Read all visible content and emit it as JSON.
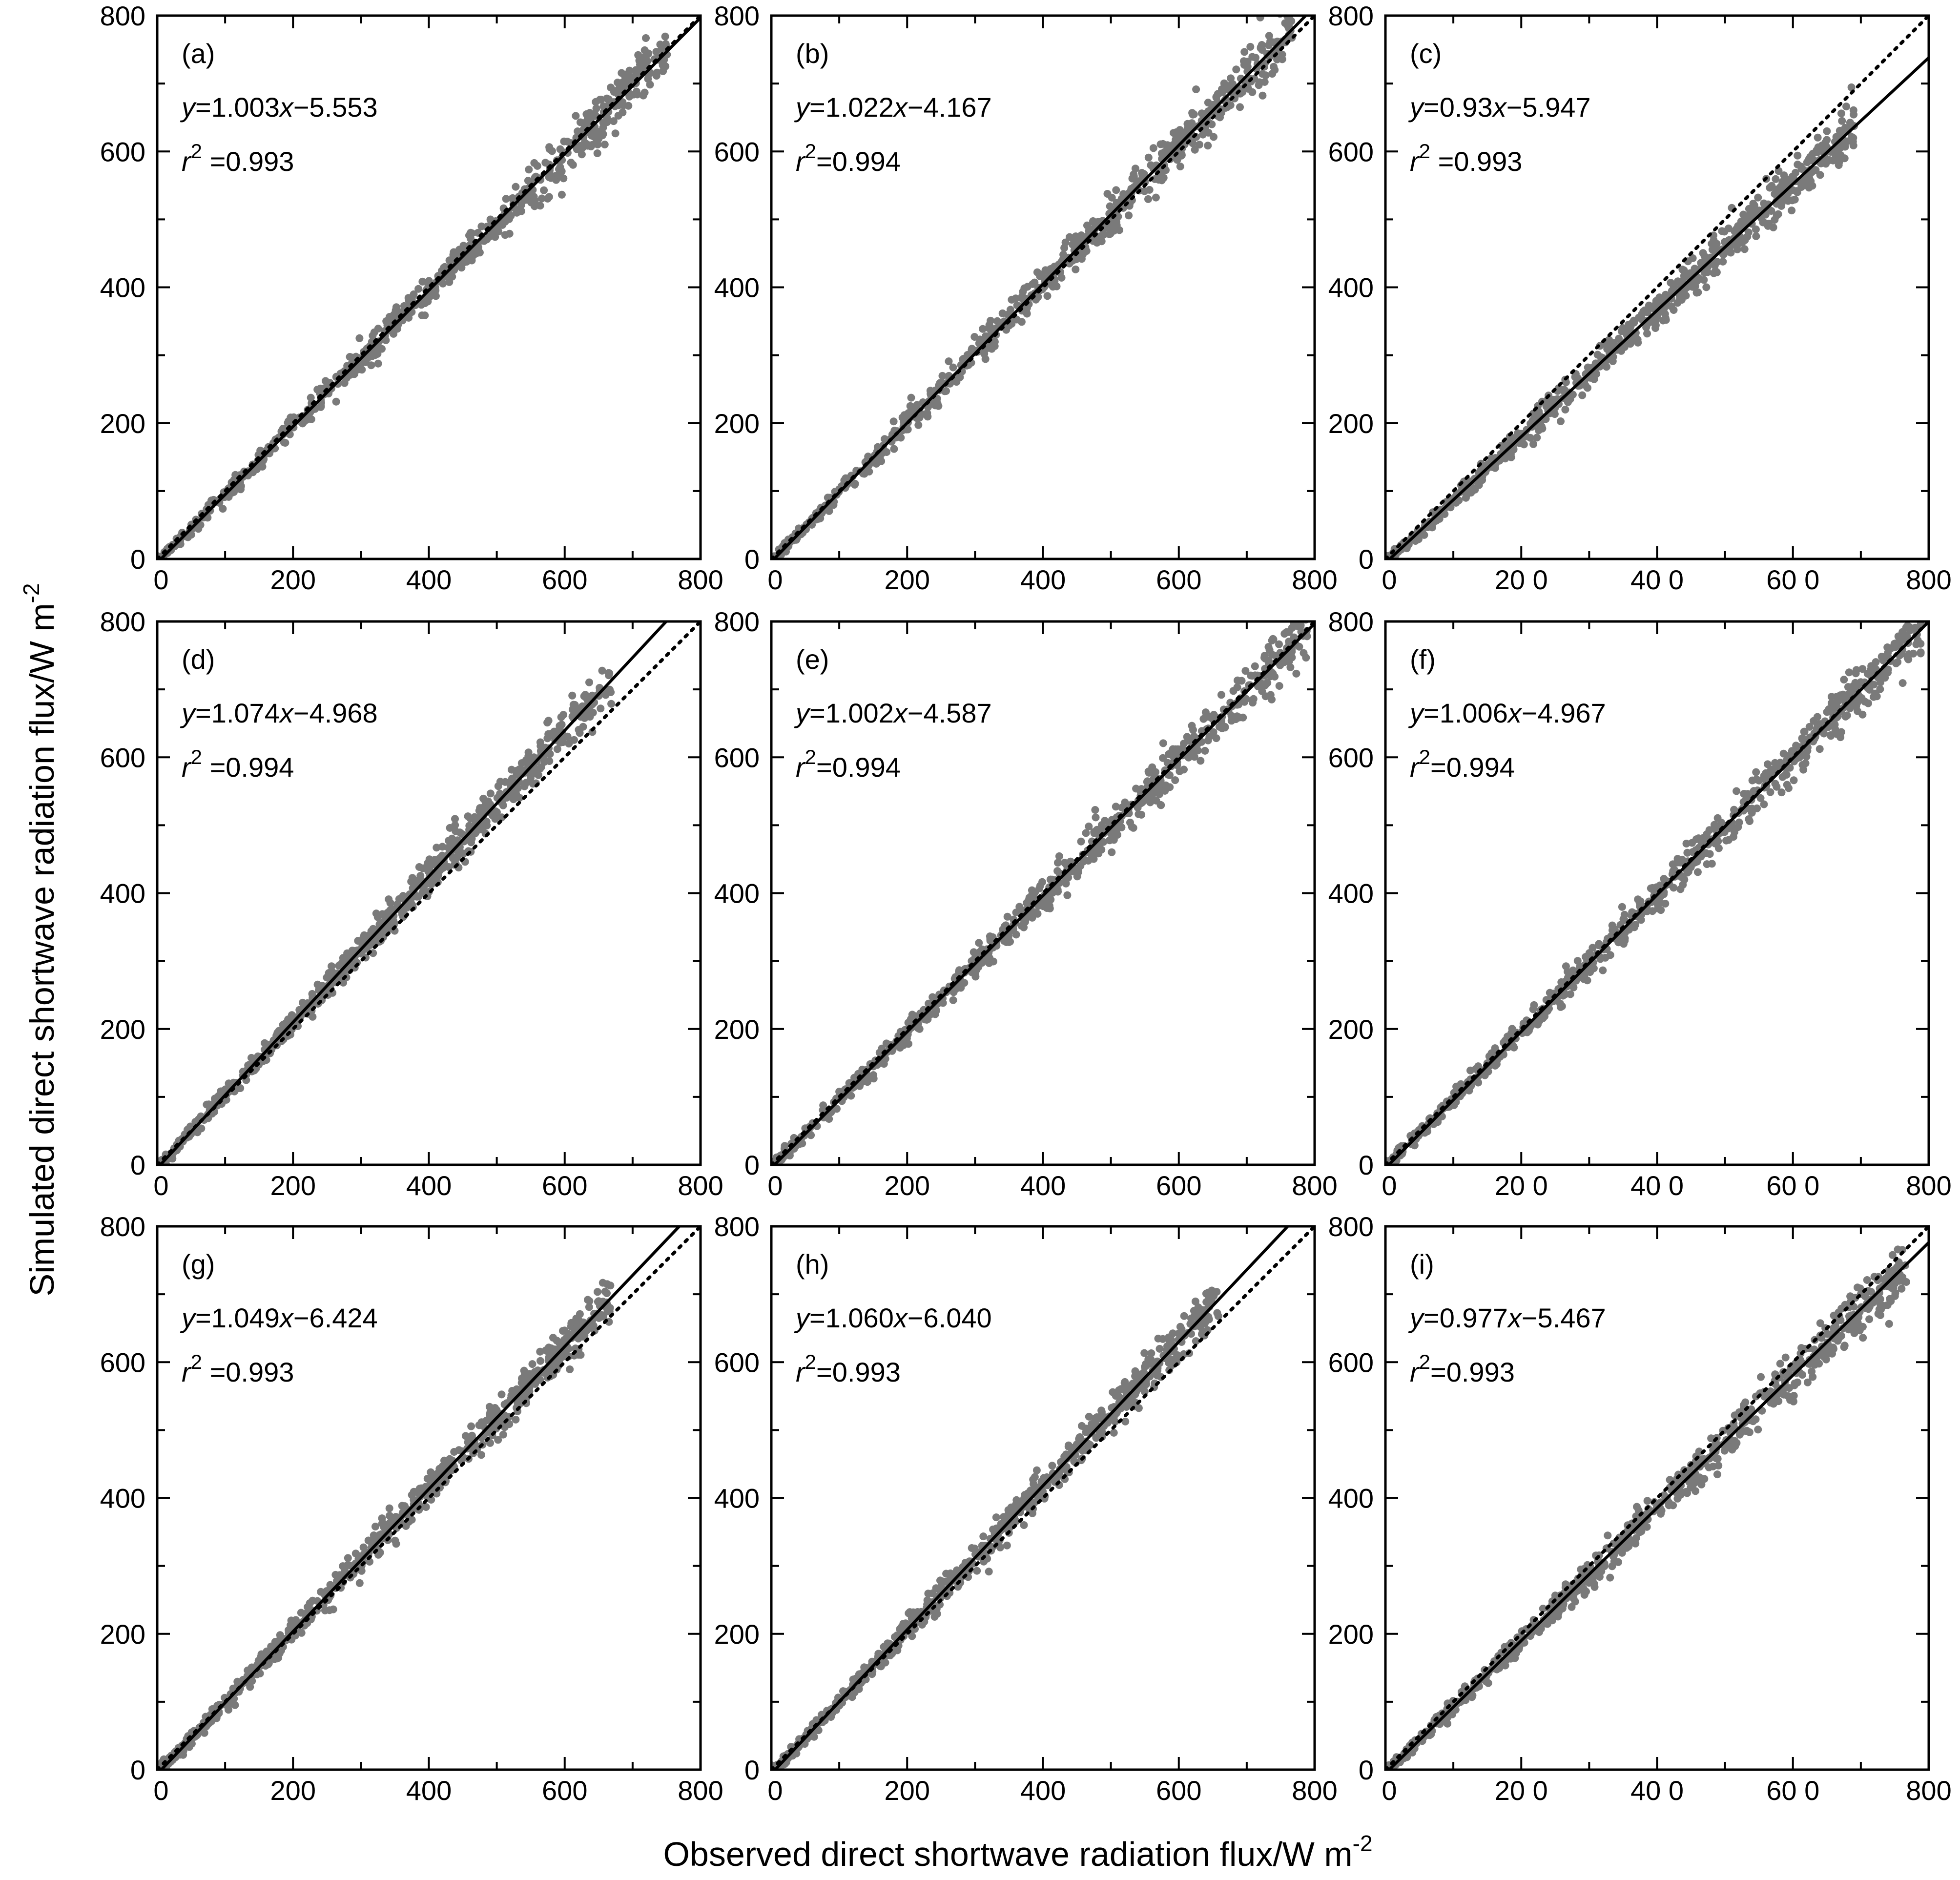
{
  "figure": {
    "xlabel": "Observed direct shortwave radiation flux/W m",
    "xlabel_sup": "-2",
    "ylabel": "Simulated direct shortwave radiation flux/W m",
    "ylabel_sup": "-2",
    "colors": {
      "points": "#7a7a7a",
      "lines": "#000000",
      "background": "#ffffff"
    }
  },
  "chart_data": [
    {
      "panel": "(a)",
      "type": "scatter",
      "xlim": [
        0,
        800
      ],
      "ylim": [
        0,
        800
      ],
      "xticks": [
        "0",
        "200",
        "400",
        "600",
        "800"
      ],
      "yticks": [
        "0",
        "200",
        "400",
        "600",
        "800"
      ],
      "fit": {
        "slope": 1.003,
        "intercept": -5.553,
        "eq_y": "y",
        "eq_coef": "=1.003",
        "eq_x": "x",
        "eq_const": "−5.553",
        "r2_label": "r",
        "r2_sup": "2",
        "r2_value": " =0.993"
      },
      "reference_line": "1:1",
      "n_points_approx": 700,
      "x_range_points": [
        0,
        755
      ]
    },
    {
      "panel": "(b)",
      "type": "scatter",
      "xlim": [
        0,
        800
      ],
      "ylim": [
        0,
        800
      ],
      "xticks": [
        "0",
        "200",
        "400",
        "600",
        "800"
      ],
      "yticks": [
        "0",
        "200",
        "400",
        "600",
        "800"
      ],
      "fit": {
        "slope": 1.022,
        "intercept": -4.167,
        "eq_y": "y",
        "eq_coef": "=1.022",
        "eq_x": "x",
        "eq_const": "−4.167",
        "r2_label": "r",
        "r2_sup": "2",
        "r2_value": "=0.994"
      },
      "reference_line": "1:1",
      "n_points_approx": 700,
      "x_range_points": [
        0,
        770
      ]
    },
    {
      "panel": "(c)",
      "type": "scatter",
      "xlim": [
        0,
        800
      ],
      "ylim": [
        0,
        800
      ],
      "xticks": [
        "0",
        "20 0",
        "40 0",
        "60 0",
        "800"
      ],
      "yticks": [
        "0",
        "200",
        "400",
        "600",
        "800"
      ],
      "fit": {
        "slope": 0.93,
        "intercept": -5.947,
        "eq_y": "y",
        "eq_coef": "=0.93",
        "eq_x": "x",
        "eq_const": "−5.947",
        "r2_label": "r",
        "r2_sup": "2",
        "r2_value": " =0.993"
      },
      "reference_line": "1:1",
      "n_points_approx": 700,
      "x_range_points": [
        0,
        690
      ]
    },
    {
      "panel": "(d)",
      "type": "scatter",
      "xlim": [
        0,
        800
      ],
      "ylim": [
        0,
        800
      ],
      "xticks": [
        "0",
        "200",
        "400",
        "600",
        "800"
      ],
      "yticks": [
        "0",
        "200",
        "400",
        "600",
        "800"
      ],
      "fit": {
        "slope": 1.074,
        "intercept": -4.968,
        "eq_y": "y",
        "eq_coef": "=1.074",
        "eq_x": "x",
        "eq_const": "−4.968",
        "r2_label": "r",
        "r2_sup": "2",
        "r2_value": " =0.994"
      },
      "reference_line": "1:1",
      "n_points_approx": 700,
      "x_range_points": [
        0,
        670
      ]
    },
    {
      "panel": "(e)",
      "type": "scatter",
      "xlim": [
        0,
        800
      ],
      "ylim": [
        0,
        800
      ],
      "xticks": [
        "0",
        "200",
        "400",
        "600",
        "800"
      ],
      "yticks": [
        "0",
        "200",
        "400",
        "600",
        "800"
      ],
      "fit": {
        "slope": 1.002,
        "intercept": -4.587,
        "eq_y": "y",
        "eq_coef": "=1.002",
        "eq_x": "x",
        "eq_const": "−4.587",
        "r2_label": "r",
        "r2_sup": "2",
        "r2_value": "=0.994"
      },
      "reference_line": "1:1",
      "n_points_approx": 700,
      "x_range_points": [
        0,
        790
      ]
    },
    {
      "panel": "(f)",
      "type": "scatter",
      "xlim": [
        0,
        800
      ],
      "ylim": [
        0,
        800
      ],
      "xticks": [
        "0",
        "20 0",
        "40 0",
        "60 0",
        "800"
      ],
      "yticks": [
        "0",
        "200",
        "400",
        "600",
        "800"
      ],
      "fit": {
        "slope": 1.006,
        "intercept": -4.967,
        "eq_y": "y",
        "eq_coef": "=1.006",
        "eq_x": "x",
        "eq_const": "−4.967",
        "r2_label": "r",
        "r2_sup": "2",
        "r2_value": "=0.994"
      },
      "reference_line": "1:1",
      "n_points_approx": 700,
      "x_range_points": [
        0,
        790
      ]
    },
    {
      "panel": "(g)",
      "type": "scatter",
      "xlim": [
        0,
        800
      ],
      "ylim": [
        0,
        800
      ],
      "xticks": [
        "0",
        "200",
        "400",
        "600",
        "800"
      ],
      "yticks": [
        "0",
        "200",
        "400",
        "600",
        "800"
      ],
      "fit": {
        "slope": 1.049,
        "intercept": -6.424,
        "eq_y": "y",
        "eq_coef": "=1.049",
        "eq_x": "x",
        "eq_const": "−6.424",
        "r2_label": "r",
        "r2_sup": "2",
        "r2_value": " =0.993"
      },
      "reference_line": "1:1",
      "n_points_approx": 700,
      "x_range_points": [
        0,
        670
      ]
    },
    {
      "panel": "(h)",
      "type": "scatter",
      "xlim": [
        0,
        800
      ],
      "ylim": [
        0,
        800
      ],
      "xticks": [
        "0",
        "200",
        "400",
        "600",
        "800"
      ],
      "yticks": [
        "0",
        "200",
        "400",
        "600",
        "800"
      ],
      "fit": {
        "slope": 1.06,
        "intercept": -6.04,
        "eq_y": "y",
        "eq_coef": "=1.060",
        "eq_x": "x",
        "eq_const": "−6.040",
        "r2_label": "r",
        "r2_sup": "2",
        "r2_value": "=0.993"
      },
      "reference_line": "1:1",
      "n_points_approx": 700,
      "x_range_points": [
        0,
        660
      ]
    },
    {
      "panel": "(i)",
      "type": "scatter",
      "xlim": [
        0,
        800
      ],
      "ylim": [
        0,
        800
      ],
      "xticks": [
        "0",
        "20 0",
        "40 0",
        "60 0",
        "800"
      ],
      "yticks": [
        "0",
        "200",
        "400",
        "600",
        "800"
      ],
      "fit": {
        "slope": 0.977,
        "intercept": -5.467,
        "eq_y": "y",
        "eq_coef": "=0.977",
        "eq_x": "x",
        "eq_const": "−5.467",
        "r2_label": "r",
        "r2_sup": "2",
        "r2_value": "=0.993"
      },
      "reference_line": "1:1",
      "n_points_approx": 700,
      "x_range_points": [
        0,
        770
      ]
    }
  ]
}
